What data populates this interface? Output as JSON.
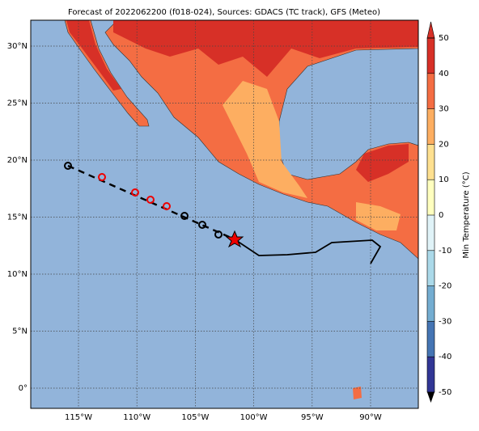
{
  "header": {
    "title": "Forecast of 2022062200 (f018-024), Sources: GDACS (TC track), GFS (Meteo)"
  },
  "map": {
    "lon_ticks": [
      {
        "value": -115,
        "label": "115°W"
      },
      {
        "value": -110,
        "label": "110°W"
      },
      {
        "value": -105,
        "label": "105°W"
      },
      {
        "value": -100,
        "label": "100°W"
      },
      {
        "value": -95,
        "label": "95°W"
      },
      {
        "value": -90,
        "label": "90°W"
      }
    ],
    "lat_ticks": [
      {
        "value": 30,
        "label": "30°N"
      },
      {
        "value": 25,
        "label": "25°N"
      },
      {
        "value": 20,
        "label": "20°N"
      },
      {
        "value": 15,
        "label": "15°N"
      },
      {
        "value": 10,
        "label": "10°N"
      },
      {
        "value": 5,
        "label": "5°N"
      },
      {
        "value": 0,
        "label": "0°"
      }
    ]
  },
  "colorbar": {
    "label": "Min Temperature (°C)",
    "ticks": [
      -50,
      -40,
      -30,
      -20,
      -10,
      0,
      10,
      20,
      30,
      40,
      50
    ],
    "colors": [
      "#313695",
      "#4575b4",
      "#74add1",
      "#abd9e9",
      "#e0f3f8",
      "#ffffbf",
      "#fee090",
      "#fdae61",
      "#f46d43",
      "#d73027"
    ]
  }
}
